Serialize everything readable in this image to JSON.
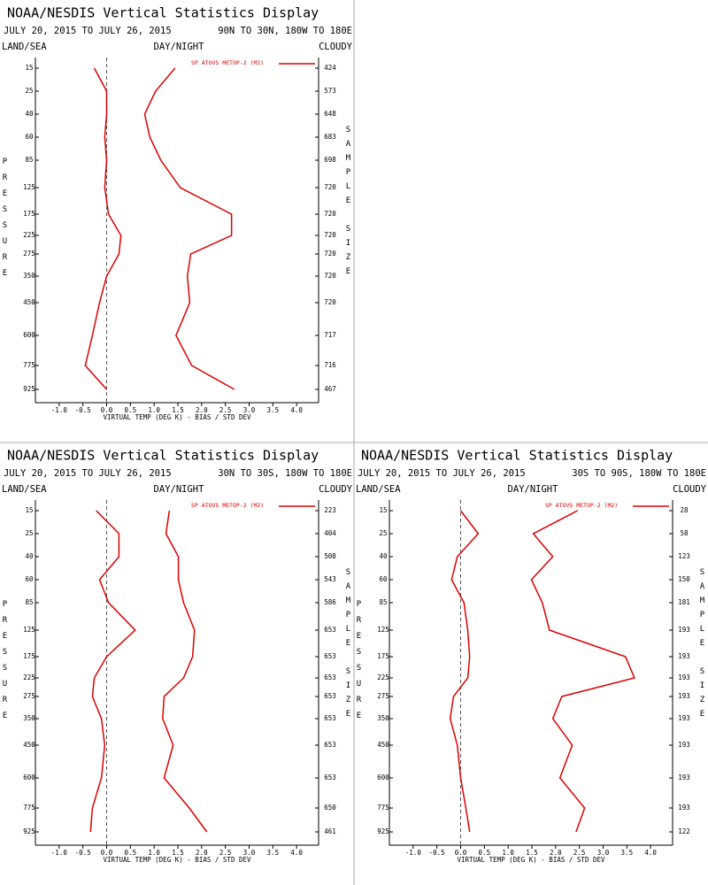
{
  "chart_data": [
    {
      "type": "line",
      "title": "NOAA/NESDIS Vertical Statistics Display",
      "date_range": "JULY 20, 2015 TO JULY 26, 2015",
      "region": "90N TO 30N, 180W TO 180E",
      "land_sea": "LAND/SEA",
      "day_night": "DAY/NIGHT",
      "cloudy": "CLOUDY",
      "y_label": "PRESSURE",
      "y2_label": "SAMPLE SIZE",
      "x_label": "VIRTUAL TEMP (DEG K) - BIAS / STD DEV",
      "legend": "SP ATOVS METOP-2 (M2)",
      "categories": [
        "15",
        "25",
        "40",
        "60",
        "85",
        "125",
        "175",
        "225",
        "275",
        "350",
        "450",
        "600",
        "775",
        "925"
      ],
      "sample_size": [
        "424",
        "573",
        "648",
        "683",
        "698",
        "720",
        "720",
        "720",
        "720",
        "720",
        "720",
        "717",
        "716",
        "467"
      ],
      "series": [
        {
          "color": "#dd0000",
          "values": [
            -0.26,
            0.0,
            0.0,
            -0.04,
            0.0,
            -0.04,
            0.04,
            0.3,
            0.26,
            0.0,
            -0.15,
            -0.3,
            -0.45,
            0.0
          ]
        },
        {
          "color": "#dd0000",
          "values": [
            1.44,
            1.03,
            0.8,
            0.91,
            1.14,
            1.55,
            2.63,
            2.63,
            1.77,
            1.7,
            1.75,
            1.46,
            1.79,
            2.69
          ]
        }
      ],
      "xlim": [
        -1.5,
        4.5
      ],
      "xticks": [
        {
          "value": -1,
          "label": "-1.0"
        },
        {
          "value": -0.5,
          "label": "-0.5"
        },
        {
          "value": 0,
          "label": "0.0"
        },
        {
          "value": 0.5,
          "label": "0.5"
        },
        {
          "value": 1,
          "label": "1.0"
        },
        {
          "value": 1.5,
          "label": "1.5"
        },
        {
          "value": 2,
          "label": "2.0"
        },
        {
          "value": 2.5,
          "label": "2.5"
        },
        {
          "value": 3,
          "label": "3.0"
        },
        {
          "value": 3.5,
          "label": "3.5"
        },
        {
          "value": 4,
          "label": "4.0"
        }
      ]
    },
    {
      "type": "line",
      "title": "NOAA/NESDIS Vertical Statistics Display",
      "date_range": "JULY 20, 2015 TO JULY 26, 2015",
      "region": "30N TO 30S, 180W TO 180E",
      "land_sea": "LAND/SEA",
      "day_night": "DAY/NIGHT",
      "cloudy": "CLOUDY",
      "y_label": "PRESSURE",
      "y2_label": "SAMPLE SIZE",
      "x_label": "VIRTUAL TEMP (DEG K) - BIAS / STD DEV",
      "legend": "SP ATOVS METOP-2 (M2)",
      "categories": [
        "15",
        "25",
        "40",
        "60",
        "85",
        "125",
        "175",
        "225",
        "275",
        "350",
        "450",
        "600",
        "775",
        "925"
      ],
      "sample_size": [
        "223",
        "404",
        "508",
        "543",
        "586",
        "653",
        "653",
        "653",
        "653",
        "653",
        "653",
        "653",
        "650",
        "461"
      ],
      "series": [
        {
          "color": "#dd0000",
          "values": [
            -0.22,
            0.26,
            0.26,
            -0.15,
            0.04,
            0.6,
            0.0,
            -0.26,
            -0.3,
            -0.11,
            -0.04,
            -0.11,
            -0.3,
            -0.34
          ]
        },
        {
          "color": "#dd0000",
          "values": [
            1.32,
            1.25,
            1.51,
            1.51,
            1.62,
            1.85,
            1.81,
            1.62,
            1.21,
            1.18,
            1.4,
            1.21,
            1.74,
            2.11
          ]
        }
      ],
      "xlim": [
        -1.5,
        4.5
      ],
      "xticks": [
        {
          "value": -1,
          "label": "-1.0"
        },
        {
          "value": -0.5,
          "label": "-0.5"
        },
        {
          "value": 0,
          "label": "0.0"
        },
        {
          "value": 0.5,
          "label": "0.5"
        },
        {
          "value": 1,
          "label": "1.0"
        },
        {
          "value": 1.5,
          "label": "1.5"
        },
        {
          "value": 2,
          "label": "2.0"
        },
        {
          "value": 2.5,
          "label": "2.5"
        },
        {
          "value": 3,
          "label": "3.0"
        },
        {
          "value": 3.5,
          "label": "3.5"
        },
        {
          "value": 4,
          "label": "4.0"
        }
      ]
    },
    {
      "type": "line",
      "title": "NOAA/NESDIS Vertical Statistics Display",
      "date_range": "JULY 20, 2015 TO JULY 26, 2015",
      "region": "30S TO 90S, 180W TO 180E",
      "land_sea": "LAND/SEA",
      "day_night": "DAY/NIGHT",
      "cloudy": "CLOUDY",
      "y_label": "PRESSURE",
      "y2_label": "SAMPLE SIZE",
      "x_label": "VIRTUAL TEMP (DEG K) - BIAS / STD DEV",
      "legend": "SP ATOVS METOP-2 (M2)",
      "categories": [
        "15",
        "25",
        "40",
        "60",
        "85",
        "125",
        "175",
        "225",
        "275",
        "350",
        "450",
        "600",
        "775",
        "925"
      ],
      "sample_size": [
        "28",
        "58",
        "123",
        "150",
        "181",
        "193",
        "193",
        "193",
        "193",
        "193",
        "193",
        "193",
        "193",
        "122"
      ],
      "series": [
        {
          "color": "#dd0000",
          "values": [
            0.0,
            0.37,
            -0.07,
            -0.19,
            0.07,
            0.15,
            0.19,
            0.15,
            -0.15,
            -0.22,
            -0.07,
            0.0,
            0.11,
            0.19
          ]
        },
        {
          "color": "#dd0000",
          "values": [
            2.46,
            1.53,
            1.94,
            1.49,
            1.72,
            1.87,
            3.47,
            3.66,
            2.13,
            1.94,
            2.35,
            2.09,
            2.61,
            2.43
          ]
        }
      ],
      "xlim": [
        -1.5,
        4.5
      ],
      "xticks": [
        {
          "value": -1,
          "label": "-1.0"
        },
        {
          "value": -0.5,
          "label": "-0.5"
        },
        {
          "value": 0,
          "label": "0.0"
        },
        {
          "value": 0.5,
          "label": "0.5"
        },
        {
          "value": 1,
          "label": "1.0"
        },
        {
          "value": 1.5,
          "label": "1.5"
        },
        {
          "value": 2,
          "label": "2.0"
        },
        {
          "value": 2.5,
          "label": "2.5"
        },
        {
          "value": 3,
          "label": "3.0"
        },
        {
          "value": 3.5,
          "label": "3.5"
        },
        {
          "value": 4,
          "label": "4.0"
        }
      ]
    }
  ]
}
